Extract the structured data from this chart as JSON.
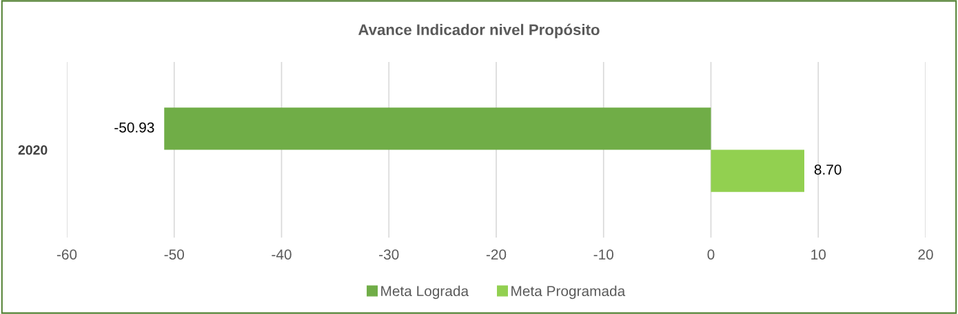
{
  "chart_data": {
    "type": "bar",
    "orientation": "horizontal",
    "title": "Avance Indicador nivel Propósito",
    "categories": [
      "2020"
    ],
    "series": [
      {
        "name": "Meta Lograda",
        "color": "#70ad47",
        "values": [
          -50.93
        ],
        "value_labels": [
          "-50.93"
        ]
      },
      {
        "name": "Meta Programada",
        "color": "#92d050",
        "values": [
          8.7
        ],
        "value_labels": [
          "8.70"
        ]
      }
    ],
    "xlim": [
      -60,
      20
    ],
    "xticks": [
      -60,
      -50,
      -40,
      -30,
      -20,
      -10,
      0,
      10,
      20
    ],
    "grid": "x",
    "legend": "bottom"
  }
}
